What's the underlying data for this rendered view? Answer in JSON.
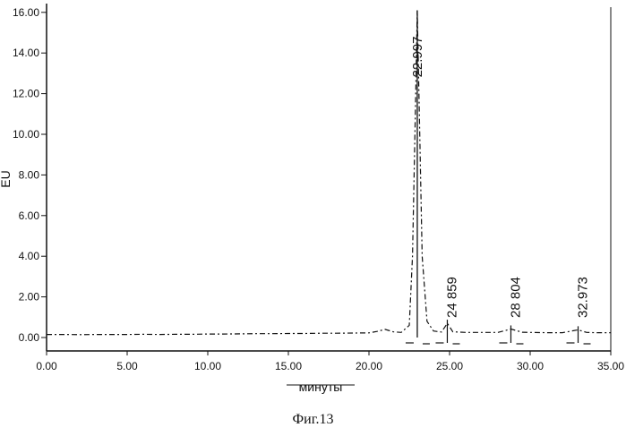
{
  "chart_data": {
    "type": "line",
    "ylabel": "EU",
    "xlabel": "минуты",
    "xlim": [
      0,
      35
    ],
    "ylim": [
      -0.8,
      16.4
    ],
    "x_ticks": [
      "0.00",
      "5.00",
      "10.00",
      "15.00",
      "20.00",
      "25.00",
      "30.00",
      "35.00"
    ],
    "y_ticks": [
      "0.00",
      "2.00",
      "4.00",
      "6.00",
      "8.00",
      "10.00",
      "12.00",
      "14.00",
      "16.00"
    ],
    "y_tick_values": [
      0,
      2,
      4,
      6,
      8,
      10,
      12,
      14,
      16
    ],
    "series": [
      {
        "x": [
          0,
          1,
          2,
          3,
          4,
          5,
          6,
          7,
          8,
          9,
          10,
          11,
          12,
          13,
          14,
          15,
          16,
          17,
          18,
          19,
          20,
          20.5,
          21,
          21.5,
          22,
          22.5,
          22.7,
          22.9,
          22.997,
          23.1,
          23.3,
          23.6,
          24,
          24.5,
          24.859,
          25.2,
          26,
          27,
          28,
          28.804,
          29.5,
          30,
          31,
          32,
          32.973,
          33.5,
          34,
          35
        ],
        "y": [
          0.15,
          0.15,
          0.14,
          0.15,
          0.15,
          0.15,
          0.16,
          0.15,
          0.16,
          0.16,
          0.17,
          0.17,
          0.18,
          0.19,
          0.19,
          0.2,
          0.2,
          0.21,
          0.21,
          0.22,
          0.23,
          0.3,
          0.4,
          0.28,
          0.25,
          0.6,
          4.0,
          12.0,
          16.1,
          12.0,
          4.0,
          0.8,
          0.32,
          0.27,
          0.7,
          0.28,
          0.25,
          0.25,
          0.25,
          0.42,
          0.26,
          0.25,
          0.24,
          0.24,
          0.38,
          0.25,
          0.24,
          0.24
        ]
      }
    ],
    "peaks": [
      {
        "time": 22.997,
        "label": "22.997",
        "height": 16.1
      },
      {
        "time": 24.859,
        "label": "24 859",
        "height": 0.7
      },
      {
        "time": 28.804,
        "label": "28 804",
        "height": 0.42
      },
      {
        "time": 32.973,
        "label": "32.973",
        "height": 0.38
      }
    ],
    "grid": false
  },
  "caption": "Фиг.13"
}
